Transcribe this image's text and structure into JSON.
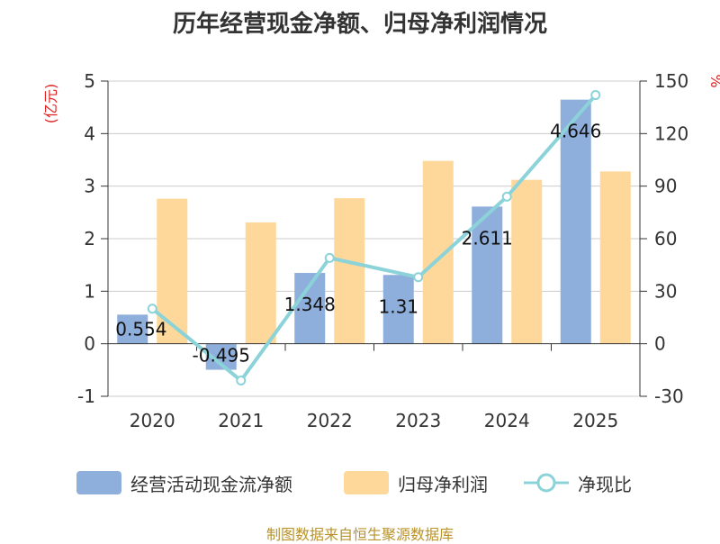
{
  "title": "历年经营现金净额、归母净利润情况",
  "source": "制图数据来自恒生聚源数据库",
  "left_unit": "(亿元)",
  "right_unit": "%",
  "colors": {
    "cash": "#8eaedb",
    "profit": "#fdd89a",
    "ratio": "#8bd3d9",
    "unit": "#e02020",
    "axis": "#333333",
    "grid": "#cccccc"
  },
  "legend": [
    {
      "name": "经营活动现金流净额",
      "kind": "bar",
      "color": "#8eaedb"
    },
    {
      "name": "归母净利润",
      "kind": "bar",
      "color": "#fdd89a"
    },
    {
      "name": "净现比",
      "kind": "line",
      "color": "#8bd3d9"
    }
  ],
  "chart_data": {
    "type": "bar",
    "title": "历年经营现金净额、归母净利润情况",
    "categories": [
      "2020",
      "2021",
      "2022",
      "2023",
      "2024",
      "2025"
    ],
    "series": [
      {
        "name": "经营活动现金流净额",
        "type": "bar",
        "axis": "left",
        "values": [
          0.554,
          -0.495,
          1.348,
          1.31,
          2.611,
          4.646
        ],
        "labels": [
          "0.554",
          "-0.495",
          "1.348",
          "1.31",
          "2.611",
          "4.646"
        ]
      },
      {
        "name": "归母净利润",
        "type": "bar",
        "axis": "left",
        "values": [
          2.76,
          2.31,
          2.77,
          3.48,
          3.12,
          3.28
        ]
      },
      {
        "name": "净现比",
        "type": "line",
        "axis": "right",
        "values": [
          20,
          -21,
          49,
          38,
          84,
          142
        ]
      }
    ],
    "ylim": [
      -1,
      5
    ],
    "yticks": [
      -1,
      0,
      1,
      2,
      3,
      4,
      5
    ],
    "y2lim": [
      -30,
      150
    ],
    "y2ticks": [
      -30,
      0,
      30,
      60,
      90,
      120,
      150
    ],
    "ylabel": "(亿元)",
    "y2label": "%",
    "grid": true,
    "legend_position": "bottom"
  }
}
